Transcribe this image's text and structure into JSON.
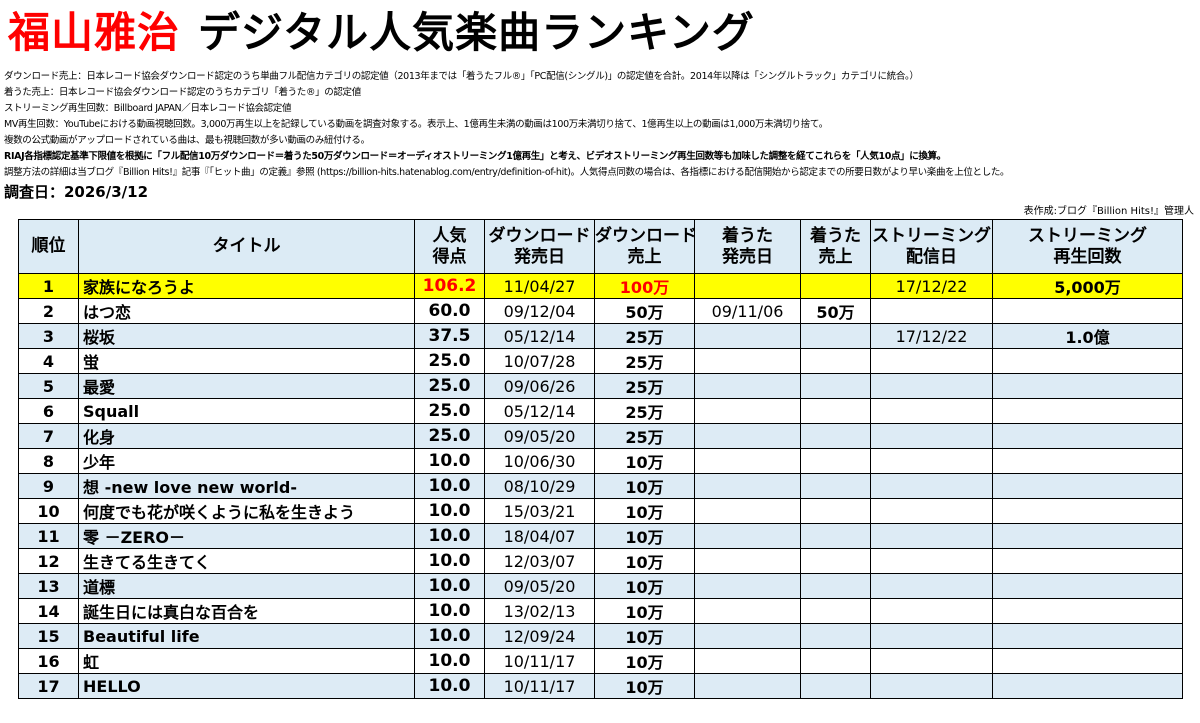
{
  "header": {
    "artist": "福山雅治",
    "title": "デジタル人気楽曲ランキング"
  },
  "notes": [
    "ダウンロード売上：日本レコード協会ダウンロード認定のうち単曲フル配信カテゴリの認定値（2013年までは「着うたフル®」「PC配信(シングル)」の認定値を合計。2014年以降は「シングルトラック」カテゴリに統合。）",
    "着うた売上：日本レコード協会ダウンロード認定のうちカテゴリ「着うた®」の認定値",
    "ストリーミング再生回数：Billboard JAPAN／日本レコード協会認定値",
    "MV再生回数：YouTubeにおける動画視聴回数。3,000万再生以上を記録している動画を調査対象する。表示上、1億再生未満の動画は100万未満切り捨て、1億再生以上の動画は1,000万未満切り捨て。",
    "複数の公式動画がアップロードされている曲は、最も視聴回数が多い動画のみ紐付ける。",
    "RIAJ各指標認定基準下限値を根拠に「フル配信10万ダウンロード＝着うた50万ダウンロード＝オーディオストリーミング1億再生」と考え、ビデオストリーミング再生回数等も加味した調整を経てこれらを「人気10点」に換算。",
    "調整方法の詳細は当ブログ『Billion Hits!』記事『「ヒット曲」の定義』参照 (https://billion-hits.hatenablog.com/entry/definition-of-hit)。人気得点同数の場合は、各指標における配信開始から認定までの所要日数がより早い楽曲を上位とした。"
  ],
  "survey_date": "調査日：2026/3/12",
  "author": "表作成:ブログ『Billion Hits!』管理人",
  "columns": [
    {
      "line1": "順位",
      "line2": ""
    },
    {
      "line1": "タイトル",
      "line2": ""
    },
    {
      "line1": "人気",
      "line2": "得点"
    },
    {
      "line1": "ダウンロード",
      "line2": "発売日"
    },
    {
      "line1": "ダウンロード",
      "line2": "売上"
    },
    {
      "line1": "着うた",
      "line2": "発売日"
    },
    {
      "line1": "着うた",
      "line2": "売上"
    },
    {
      "line1": "ストリーミング",
      "line2": "配信日"
    },
    {
      "line1": "ストリーミング",
      "line2": "再生回数"
    }
  ],
  "rows": [
    {
      "rank": "1",
      "title": "家族になろうよ",
      "points": "106.2",
      "dl_date": "11/04/27",
      "dl_sales": "100万",
      "chaku_date": "",
      "chaku_sales": "",
      "st_date": "17/12/22",
      "st_plays": "5,000万"
    },
    {
      "rank": "2",
      "title": "はつ恋",
      "points": "60.0",
      "dl_date": "09/12/04",
      "dl_sales": "50万",
      "chaku_date": "09/11/06",
      "chaku_sales": "50万",
      "st_date": "",
      "st_plays": ""
    },
    {
      "rank": "3",
      "title": "桜坂",
      "points": "37.5",
      "dl_date": "05/12/14",
      "dl_sales": "25万",
      "chaku_date": "",
      "chaku_sales": "",
      "st_date": "17/12/22",
      "st_plays": "1.0億"
    },
    {
      "rank": "4",
      "title": "蛍",
      "points": "25.0",
      "dl_date": "10/07/28",
      "dl_sales": "25万",
      "chaku_date": "",
      "chaku_sales": "",
      "st_date": "",
      "st_plays": ""
    },
    {
      "rank": "5",
      "title": "最愛",
      "points": "25.0",
      "dl_date": "09/06/26",
      "dl_sales": "25万",
      "chaku_date": "",
      "chaku_sales": "",
      "st_date": "",
      "st_plays": ""
    },
    {
      "rank": "6",
      "title": "Squall",
      "points": "25.0",
      "dl_date": "05/12/14",
      "dl_sales": "25万",
      "chaku_date": "",
      "chaku_sales": "",
      "st_date": "",
      "st_plays": ""
    },
    {
      "rank": "7",
      "title": "化身",
      "points": "25.0",
      "dl_date": "09/05/20",
      "dl_sales": "25万",
      "chaku_date": "",
      "chaku_sales": "",
      "st_date": "",
      "st_plays": ""
    },
    {
      "rank": "8",
      "title": "少年",
      "points": "10.0",
      "dl_date": "10/06/30",
      "dl_sales": "10万",
      "chaku_date": "",
      "chaku_sales": "",
      "st_date": "",
      "st_plays": ""
    },
    {
      "rank": "9",
      "title": "想 -new love new world-",
      "points": "10.0",
      "dl_date": "08/10/29",
      "dl_sales": "10万",
      "chaku_date": "",
      "chaku_sales": "",
      "st_date": "",
      "st_plays": ""
    },
    {
      "rank": "10",
      "title": "何度でも花が咲くように私を生きよう",
      "points": "10.0",
      "dl_date": "15/03/21",
      "dl_sales": "10万",
      "chaku_date": "",
      "chaku_sales": "",
      "st_date": "",
      "st_plays": ""
    },
    {
      "rank": "11",
      "title": "零 －ZERO－",
      "points": "10.0",
      "dl_date": "18/04/07",
      "dl_sales": "10万",
      "chaku_date": "",
      "chaku_sales": "",
      "st_date": "",
      "st_plays": ""
    },
    {
      "rank": "12",
      "title": "生きてる生きてく",
      "points": "10.0",
      "dl_date": "12/03/07",
      "dl_sales": "10万",
      "chaku_date": "",
      "chaku_sales": "",
      "st_date": "",
      "st_plays": ""
    },
    {
      "rank": "13",
      "title": "道標",
      "points": "10.0",
      "dl_date": "09/05/20",
      "dl_sales": "10万",
      "chaku_date": "",
      "chaku_sales": "",
      "st_date": "",
      "st_plays": ""
    },
    {
      "rank": "14",
      "title": "誕生日には真白な百合を",
      "points": "10.0",
      "dl_date": "13/02/13",
      "dl_sales": "10万",
      "chaku_date": "",
      "chaku_sales": "",
      "st_date": "",
      "st_plays": ""
    },
    {
      "rank": "15",
      "title": "Beautiful life",
      "points": "10.0",
      "dl_date": "12/09/24",
      "dl_sales": "10万",
      "chaku_date": "",
      "chaku_sales": "",
      "st_date": "",
      "st_plays": ""
    },
    {
      "rank": "16",
      "title": "虹",
      "points": "10.0",
      "dl_date": "10/11/17",
      "dl_sales": "10万",
      "chaku_date": "",
      "chaku_sales": "",
      "st_date": "",
      "st_plays": ""
    },
    {
      "rank": "17",
      "title": "HELLO",
      "points": "10.0",
      "dl_date": "10/11/17",
      "dl_sales": "10万",
      "chaku_date": "",
      "chaku_sales": "",
      "st_date": "",
      "st_plays": ""
    }
  ],
  "colors": {
    "artist": "#ff0000",
    "highlight_row": "#ffff00",
    "alt_row": "#ddebf5",
    "header_bg": "#dcebf5",
    "top_value": "#ff0000"
  }
}
